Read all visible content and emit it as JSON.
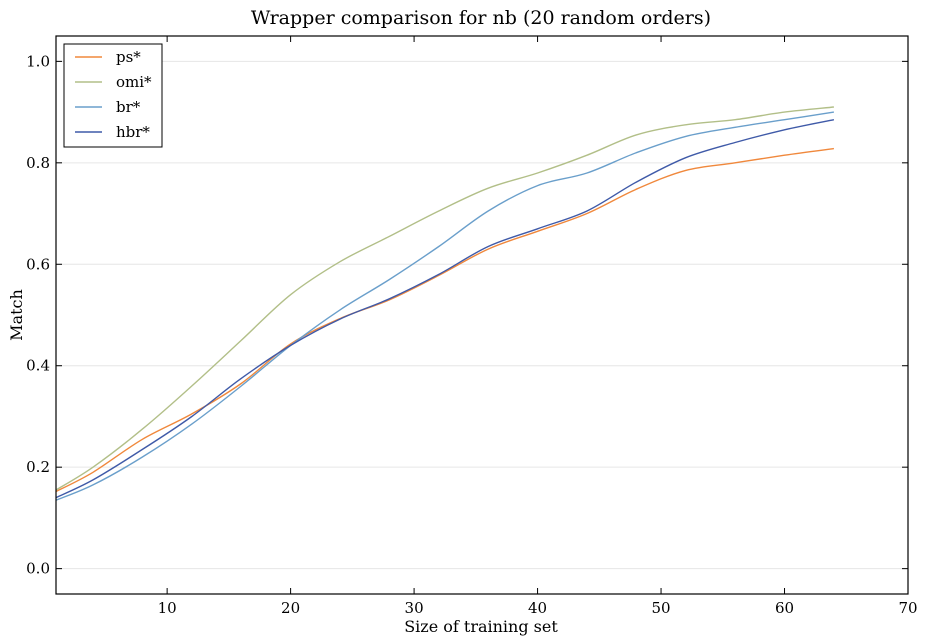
{
  "chart_data": {
    "type": "line",
    "title": "Wrapper comparison for nb (20 random orders)",
    "xlabel": "Size of training set",
    "ylabel": "Match",
    "xlim": [
      1,
      70
    ],
    "ylim": [
      -0.05,
      1.05
    ],
    "xticks": [
      10,
      20,
      30,
      40,
      50,
      60,
      70
    ],
    "yticks": [
      0.0,
      0.2,
      0.4,
      0.6,
      0.8,
      1.0
    ],
    "xtick_labels": [
      "10",
      "20",
      "30",
      "40",
      "50",
      "60",
      "70"
    ],
    "ytick_labels": [
      "0.0",
      "0.2",
      "0.4",
      "0.6",
      "0.8",
      "1.0"
    ],
    "grid": "horizontal",
    "legend_position": "top-left",
    "x": [
      1,
      4,
      8,
      12,
      16,
      20,
      24,
      28,
      32,
      36,
      40,
      44,
      48,
      52,
      56,
      60,
      64
    ],
    "series": [
      {
        "name": "ps*",
        "color": "#f0883c",
        "values": [
          0.152,
          0.19,
          0.255,
          0.305,
          0.365,
          0.443,
          0.493,
          0.53,
          0.578,
          0.63,
          0.665,
          0.7,
          0.748,
          0.785,
          0.8,
          0.815,
          0.828
        ]
      },
      {
        "name": "omi*",
        "color": "#b2bf88",
        "values": [
          0.155,
          0.2,
          0.275,
          0.36,
          0.45,
          0.54,
          0.605,
          0.655,
          0.705,
          0.75,
          0.78,
          0.815,
          0.855,
          0.875,
          0.885,
          0.9,
          0.91
        ]
      },
      {
        "name": "br*",
        "color": "#6a9fcb",
        "values": [
          0.135,
          0.165,
          0.22,
          0.285,
          0.36,
          0.44,
          0.51,
          0.57,
          0.635,
          0.705,
          0.755,
          0.78,
          0.82,
          0.852,
          0.87,
          0.885,
          0.9
        ]
      },
      {
        "name": "hbr*",
        "color": "#3f5aa8",
        "values": [
          0.14,
          0.175,
          0.235,
          0.3,
          0.375,
          0.44,
          0.492,
          0.532,
          0.58,
          0.635,
          0.67,
          0.705,
          0.762,
          0.81,
          0.84,
          0.865,
          0.885
        ]
      }
    ]
  }
}
